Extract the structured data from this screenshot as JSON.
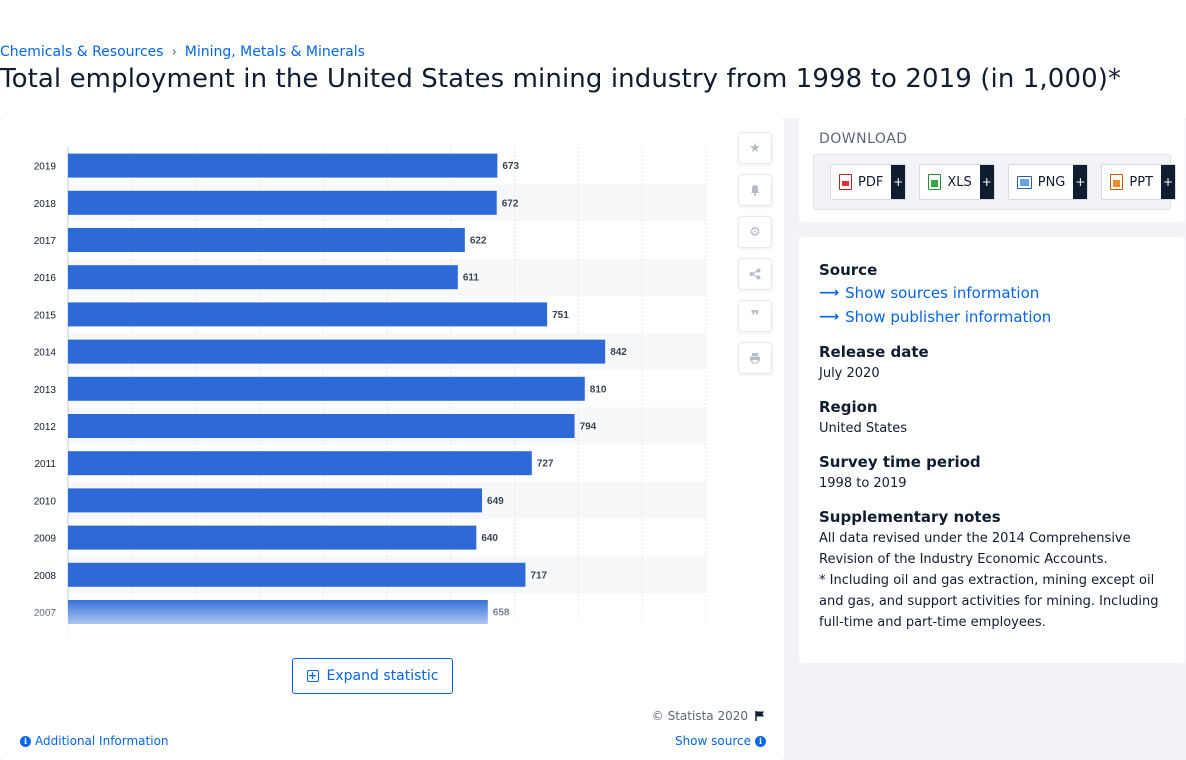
{
  "breadcrumb": {
    "items": [
      "Chemicals & Resources",
      "Mining, Metals & Minerals"
    ]
  },
  "page": {
    "title": "Total employment in the United States mining industry from 1998 to 2019 (in 1,000)*"
  },
  "chart_data": {
    "type": "bar",
    "orientation": "horizontal",
    "categories": [
      "2019",
      "2018",
      "2017",
      "2016",
      "2015",
      "2014",
      "2013",
      "2012",
      "2011",
      "2010",
      "2009",
      "2008",
      "2007"
    ],
    "values": [
      673,
      672,
      622,
      611,
      751,
      842,
      810,
      794,
      727,
      649,
      640,
      717,
      658
    ],
    "bar_color": "#2d6ad8",
    "xlim": [
      0,
      1000
    ],
    "grid": true
  },
  "toolbar": {
    "icons": [
      "star-icon",
      "bell-icon",
      "gear-icon",
      "share-icon",
      "quote-icon",
      "print-icon"
    ]
  },
  "chart_footer": {
    "expand_label": "Expand statistic",
    "copyright": "© Statista 2020",
    "additional_info": "Additional Information",
    "show_source": "Show source"
  },
  "download": {
    "title": "DOWNLOAD",
    "buttons": [
      {
        "label": "PDF",
        "icon": "pdf-file-icon"
      },
      {
        "label": "XLS",
        "icon": "xls-file-icon"
      },
      {
        "label": "PNG",
        "icon": "png-file-icon"
      },
      {
        "label": "PPT",
        "icon": "ppt-file-icon"
      }
    ],
    "plus": "+"
  },
  "info": {
    "source_label": "Source",
    "show_sources": "Show sources information",
    "show_publisher": "Show publisher information",
    "release_label": "Release date",
    "release_value": "July 2020",
    "region_label": "Region",
    "region_value": "United States",
    "survey_label": "Survey time period",
    "survey_value": "1998 to 2019",
    "notes_label": "Supplementary notes",
    "notes_1": "All data revised under the 2014 Comprehensive Revision of the Industry Economic Accounts.",
    "notes_2": "* Including oil and gas extraction, mining except oil and gas, and support activities for mining. Including full-time and part-time employees."
  },
  "colors": {
    "accent": "#0666e5",
    "bar": "#2d6ad8",
    "dark": "#101d30"
  }
}
